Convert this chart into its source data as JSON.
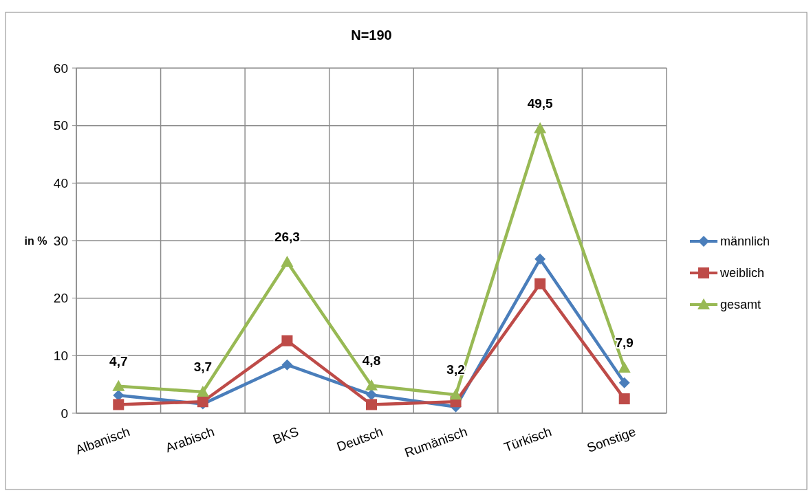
{
  "chart_data": {
    "type": "line",
    "title": "N=190",
    "ylabel": "in %",
    "categories": [
      "Albanisch",
      "Arabisch",
      "BKS",
      "Deutsch",
      "Rumänisch",
      "Türkisch",
      "Sonstige"
    ],
    "series": [
      {
        "name": "männlich",
        "color": "#4a7ebb",
        "marker": "diamond",
        "values": [
          3.1,
          1.6,
          8.4,
          3.2,
          1.1,
          26.8,
          5.3
        ]
      },
      {
        "name": "weiblich",
        "color": "#be4b48",
        "marker": "square",
        "values": [
          1.5,
          2.0,
          12.6,
          1.5,
          2.0,
          22.5,
          2.5
        ]
      },
      {
        "name": "gesamt",
        "color": "#98b954",
        "marker": "triangle",
        "values": [
          4.7,
          3.7,
          26.3,
          4.8,
          3.2,
          49.5,
          7.9
        ],
        "value_labels": [
          "4,7",
          "3,7",
          "26,3",
          "4,8",
          "3,2",
          "49,5",
          "7,9"
        ]
      }
    ],
    "ylim": [
      0,
      60
    ],
    "yticks": [
      0,
      10,
      20,
      30,
      40,
      50,
      60
    ],
    "grid": true,
    "legend": "right"
  }
}
